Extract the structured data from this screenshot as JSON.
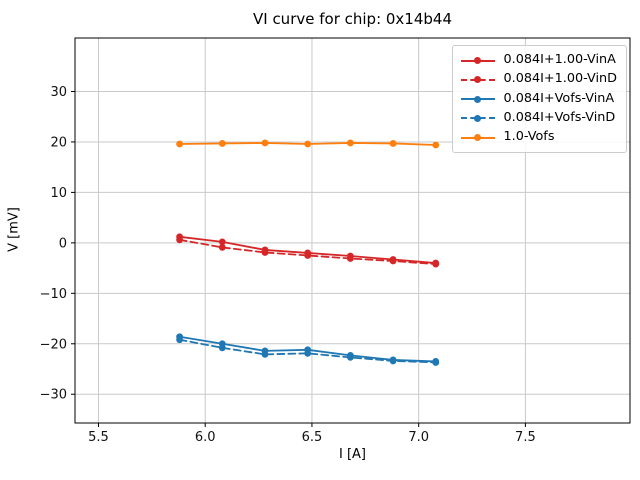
{
  "title": "VI curve for chip: 0x14b44",
  "colors": {
    "background": "#ffffff",
    "grid": "#c9c9c9",
    "spine": "#000000",
    "tick_text": "#111111",
    "legend_border": "#cccccc",
    "red": "#d62728",
    "blue": "#1f77b4",
    "orange": "#ff7f0e"
  },
  "chart_data": {
    "type": "line",
    "title": "VI curve for chip: 0x14b44",
    "xlabel": "I [A]",
    "ylabel": "V [mV]",
    "xlim": [
      5.39,
      7.99
    ],
    "ylim": [
      -35.7,
      40.6
    ],
    "xticks": [
      5.5,
      6.0,
      6.5,
      7.0,
      7.5
    ],
    "yticks": [
      -30,
      -20,
      -10,
      0,
      10,
      20,
      30
    ],
    "grid": true,
    "legend_position": "upper right",
    "x": [
      5.88,
      6.08,
      6.28,
      6.48,
      6.68,
      6.88,
      7.08
    ],
    "series": [
      {
        "name": "0.084I+1.00-VinA",
        "color": "#d62728",
        "style": "solid",
        "marker": "circle",
        "values": [
          1.2,
          0.2,
          -1.4,
          -2.0,
          -2.6,
          -3.3,
          -4.0
        ]
      },
      {
        "name": "0.084I+1.00-VinD",
        "color": "#d62728",
        "style": "dashed",
        "marker": "circle",
        "values": [
          0.6,
          -0.9,
          -1.9,
          -2.5,
          -3.1,
          -3.6,
          -4.2
        ]
      },
      {
        "name": "0.084I+Vofs-VinA",
        "color": "#1f77b4",
        "style": "solid",
        "marker": "circle",
        "values": [
          -18.6,
          -20.0,
          -21.4,
          -21.2,
          -22.3,
          -23.2,
          -23.5
        ]
      },
      {
        "name": "0.084I+Vofs-VinD",
        "color": "#1f77b4",
        "style": "dashed",
        "marker": "circle",
        "values": [
          -19.2,
          -20.8,
          -22.1,
          -21.9,
          -22.7,
          -23.4,
          -23.7
        ]
      },
      {
        "name": "1.0-Vofs",
        "color": "#ff7f0e",
        "style": "solid",
        "marker": "circle",
        "values": [
          19.6,
          19.7,
          19.8,
          19.6,
          19.8,
          19.7,
          19.4
        ]
      }
    ]
  }
}
